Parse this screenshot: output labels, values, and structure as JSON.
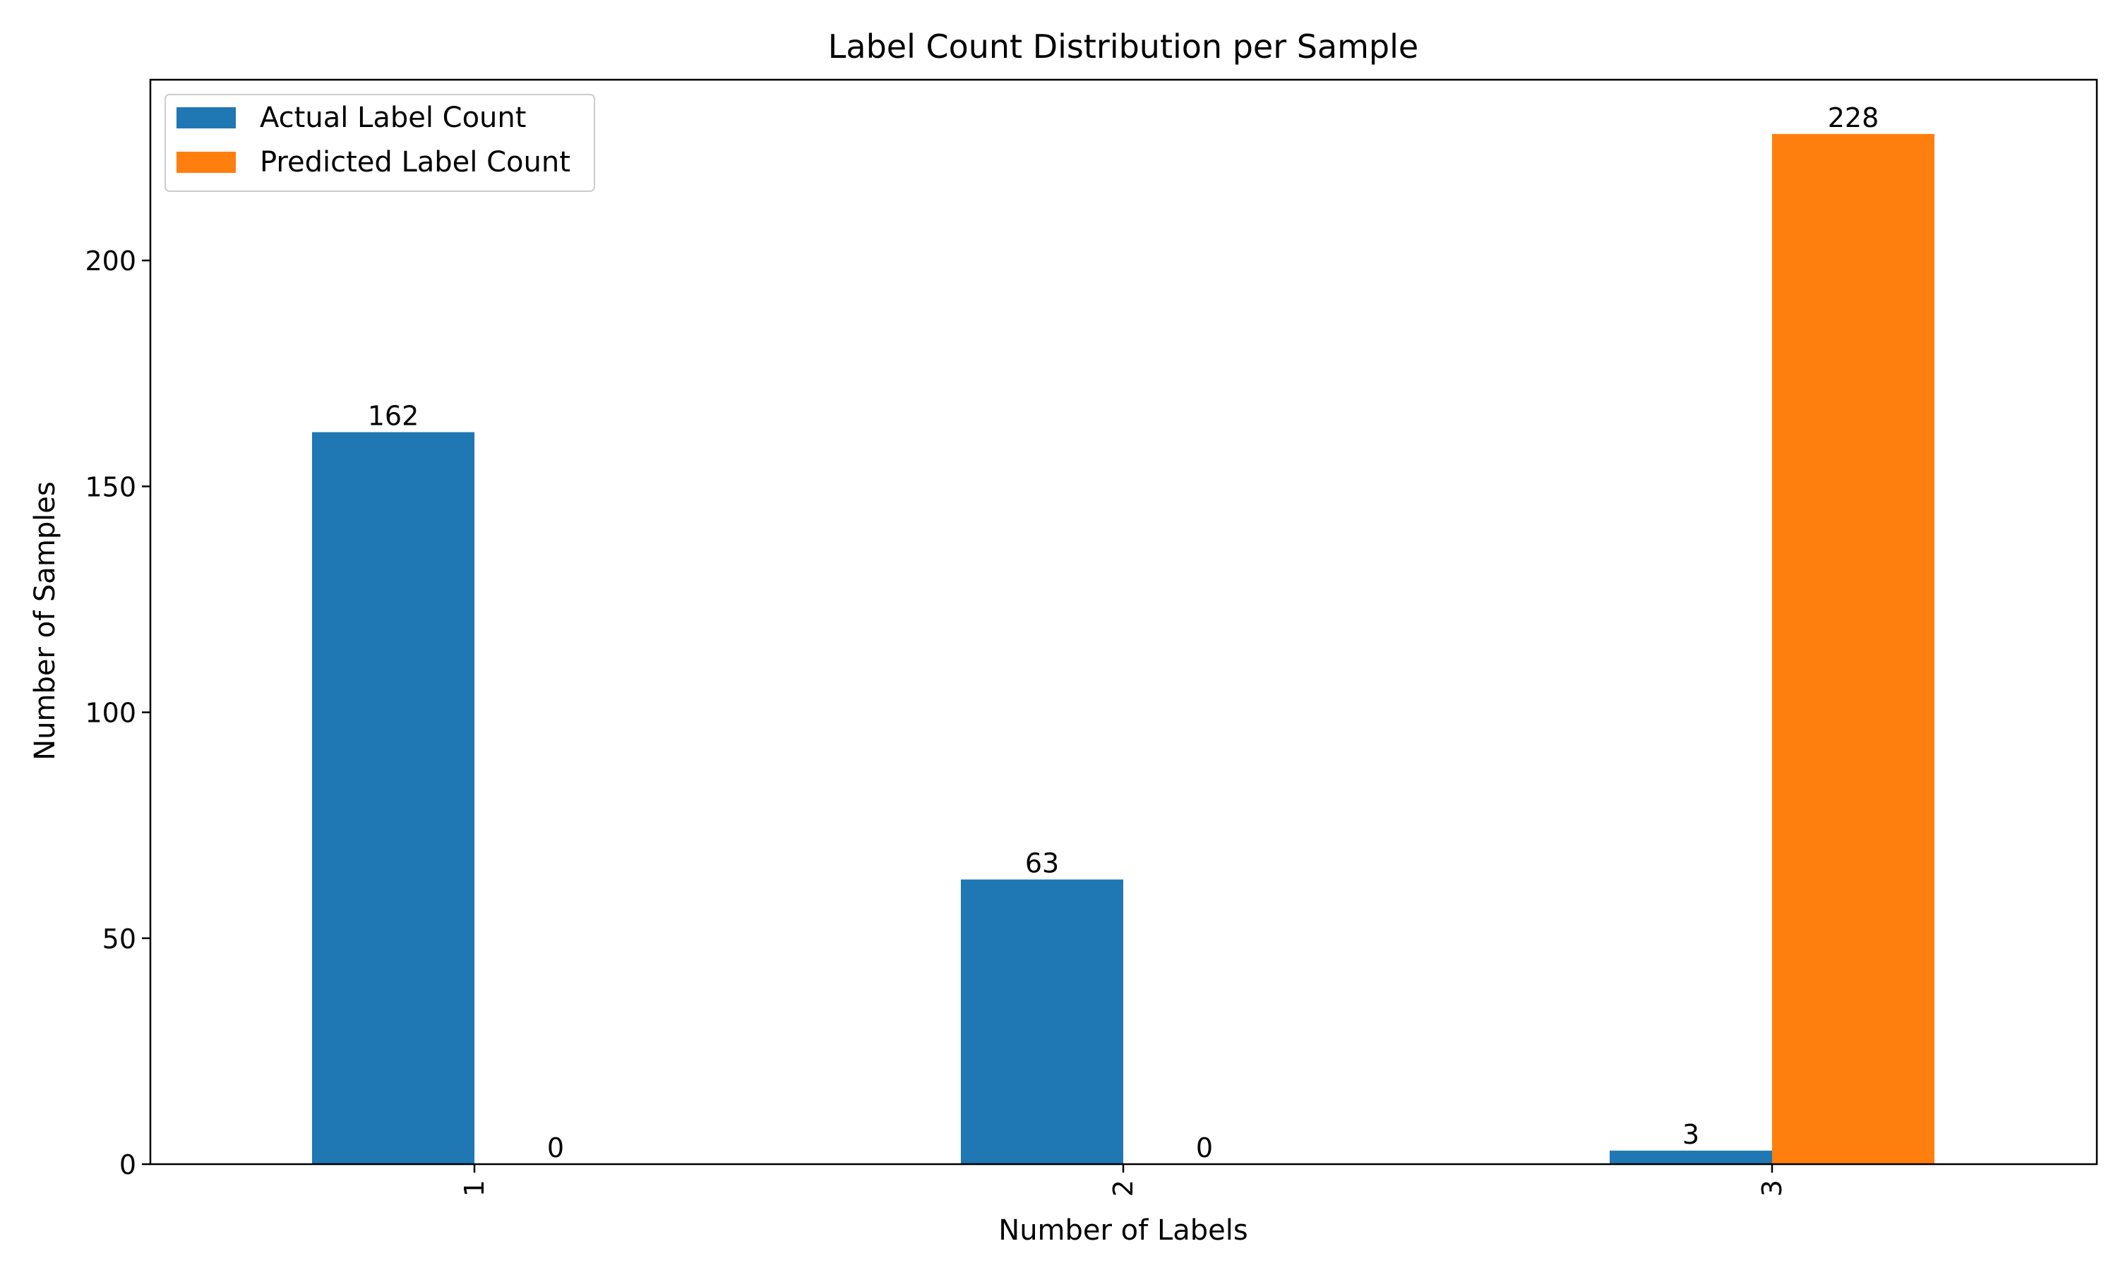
{
  "chart_data": {
    "type": "bar",
    "title": "Label Count Distribution per Sample",
    "xlabel": "Number of Labels",
    "ylabel": "Number of Samples",
    "categories": [
      "1",
      "2",
      "3"
    ],
    "series": [
      {
        "name": "Actual Label Count",
        "values": [
          162,
          63,
          3
        ],
        "color": "#1f77b4"
      },
      {
        "name": "Predicted Label Count",
        "values": [
          0,
          0,
          228
        ],
        "color": "#ff7f0e"
      }
    ],
    "ylim": [
      0,
      240
    ],
    "yticks": [
      0,
      50,
      100,
      150,
      200
    ],
    "grid": false,
    "legend_position": "top-left",
    "xtick_rotation": "vertical"
  }
}
